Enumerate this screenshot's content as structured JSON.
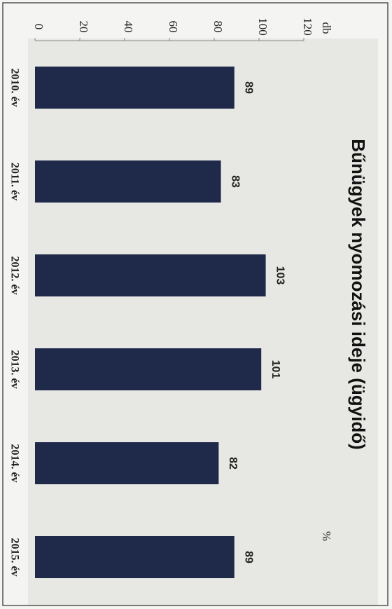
{
  "chart_data": {
    "type": "bar",
    "orientation": "rotated-90",
    "title": "Bűnügyek nyomozási ideje (ügyidő)",
    "y_label": "db",
    "y2_label": "%",
    "categories": [
      "2010. év",
      "2011. év",
      "2012. év",
      "2013. év",
      "2014. év",
      "2015. év"
    ],
    "values": [
      89,
      83,
      103,
      101,
      82,
      89
    ],
    "color": "#1f2a4a",
    "ylim": [
      0,
      120
    ],
    "yticks": [
      0,
      20,
      40,
      60,
      80,
      100,
      120
    ],
    "grid": false
  }
}
